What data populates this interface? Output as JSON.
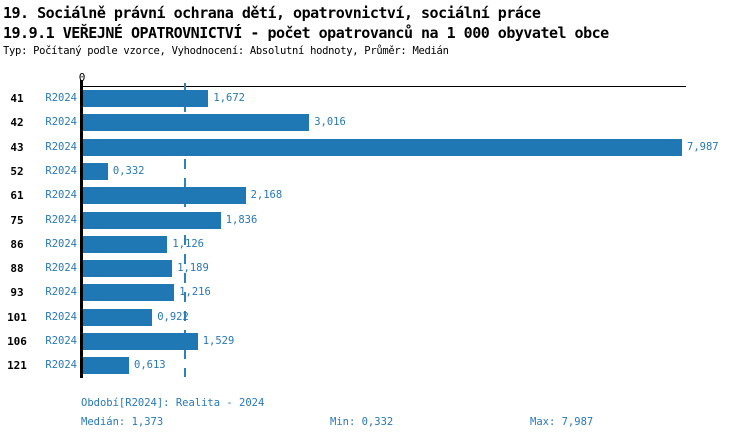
{
  "header": {
    "title_line1": "19. Sociálně právní ochrana dětí, opatrovnictví, sociální práce",
    "title_line2": "19.9.1 VEŘEJNÉ OPATROVNICTVÍ - počet opatrovanců na 1 000 obyvatel obce",
    "meta_line": "Typ: Počítaný podle vzorce, Vyhodnocení: Absolutní hodnoty, Průměr: Medián"
  },
  "chart_data": {
    "type": "bar",
    "orientation": "horizontal",
    "title": "19.9.1 VEŘEJNÉ OPATROVNICTVÍ - počet opatrovanců na 1 000 obyvatel obce",
    "categories": [
      "41",
      "42",
      "43",
      "52",
      "61",
      "75",
      "86",
      "88",
      "93",
      "101",
      "106",
      "121"
    ],
    "series": [
      {
        "name": "R2024",
        "values": [
          1.672,
          3.016,
          7.987,
          0.332,
          2.168,
          1.836,
          1.126,
          1.189,
          1.216,
          0.922,
          1.529,
          0.613
        ],
        "value_labels": [
          "1,672",
          "3,016",
          "7,987",
          "0,332",
          "2,168",
          "1,836",
          "1,126",
          "1,189",
          "1,216",
          "0,922",
          "1,529",
          "0,613"
        ]
      }
    ],
    "xlabel": "",
    "ylabel": "",
    "xlim": [
      0,
      8.04
    ],
    "origin_tick_label": "0",
    "median_value": 1.373,
    "grid": false,
    "legend_position": "none",
    "decimal_separator": ","
  },
  "colors": {
    "bar": "#1f77b4",
    "blue_text": "#2878b8",
    "median_line": "#2e82bc",
    "axis": "#000000",
    "title_text": "#000000",
    "background": "#ffffff"
  },
  "footer": {
    "period": "Období[R2024]: Realita - 2024",
    "median": "Medián: 1,373",
    "min": "Min: 0,332",
    "max": "Max: 7,987"
  }
}
